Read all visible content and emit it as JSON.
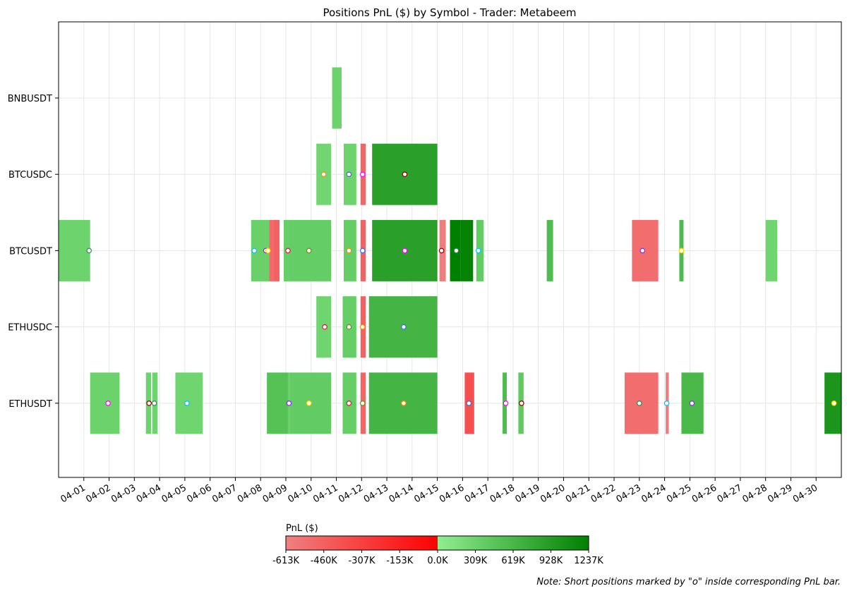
{
  "chart_data": {
    "type": "bar",
    "subtype": "timeline",
    "title": "Positions PnL ($) by Symbol - Trader: Metabeem",
    "categories": [
      "BNBUSDT",
      "BTCUSDC",
      "BTCUSDT",
      "ETHUSDC",
      "ETHUSDT"
    ],
    "x_ticks": [
      "04-01",
      "04-02",
      "04-03",
      "04-04",
      "04-05",
      "04-06",
      "04-07",
      "04-08",
      "04-09",
      "04-10",
      "04-11",
      "04-12",
      "04-13",
      "04-14",
      "04-15",
      "04-16",
      "04-17",
      "04-18",
      "04-19",
      "04-20",
      "04-21",
      "04-22",
      "04-23",
      "04-24",
      "04-25",
      "04-26",
      "04-27",
      "04-28",
      "04-29",
      "04-30"
    ],
    "xlim": [
      "2025-03-31 00:00",
      "2025-05-01 00:00"
    ],
    "grid": true,
    "positions": [
      {
        "symbol": "BNBUSDT",
        "start": "2025-04-10 20:00",
        "end": "2025-04-11 05:00",
        "pnl": 310000
      },
      {
        "symbol": "BTCUSDC",
        "start": "2025-04-10 05:00",
        "end": "2025-04-10 19:00",
        "pnl": 270000,
        "short_at": "2025-04-10 12:00"
      },
      {
        "symbol": "BTCUSDC",
        "start": "2025-04-11 07:00",
        "end": "2025-04-11 19:00",
        "pnl": 300000,
        "short_at": "2025-04-11 12:00"
      },
      {
        "symbol": "BTCUSDC",
        "start": "2025-04-11 23:00",
        "end": "2025-04-12 04:00",
        "pnl": -480000,
        "short_at": "2025-04-12 01:00"
      },
      {
        "symbol": "BTCUSDC",
        "start": "2025-04-12 10:00",
        "end": "2025-04-15 00:00",
        "pnl": 880000,
        "short_at": "2025-04-13 17:00"
      },
      {
        "symbol": "BTCUSDT",
        "start": "2025-03-31 00:00",
        "end": "2025-04-01 06:00",
        "pnl": 300000,
        "short_at": "2025-04-01 05:00"
      },
      {
        "symbol": "BTCUSDT",
        "start": "2025-04-07 15:00",
        "end": "2025-04-08 08:00",
        "pnl": 330000,
        "short_at": "2025-04-07 18:00"
      },
      {
        "symbol": "BTCUSDT",
        "start": "2025-04-08 08:00",
        "end": "2025-04-08 12:00",
        "pnl": -500000,
        "short_at": "2025-04-08 05:00"
      },
      {
        "symbol": "BTCUSDT",
        "start": "2025-04-08 12:00",
        "end": "2025-04-08 18:00",
        "pnl": -470000,
        "short_at": "2025-04-08 07:00"
      },
      {
        "symbol": "BTCUSDT",
        "start": "2025-04-08 22:00",
        "end": "2025-04-09 03:00",
        "pnl": 350000,
        "short_at": "2025-04-09 02:00"
      },
      {
        "symbol": "BTCUSDT",
        "start": "2025-04-09 03:00",
        "end": "2025-04-10 19:00",
        "pnl": 370000,
        "short_at": "2025-04-09 22:00"
      },
      {
        "symbol": "BTCUSDT",
        "start": "2025-04-11 07:00",
        "end": "2025-04-11 19:00",
        "pnl": 370000,
        "short_at": "2025-04-11 12:00"
      },
      {
        "symbol": "BTCUSDT",
        "start": "2025-04-11 23:00",
        "end": "2025-04-12 04:00",
        "pnl": -470000,
        "short_at": "2025-04-12 01:00"
      },
      {
        "symbol": "BTCUSDT",
        "start": "2025-04-12 10:00",
        "end": "2025-04-15 00:00",
        "pnl": 880000,
        "short_at": "2025-04-13 17:00"
      },
      {
        "symbol": "BTCUSDT",
        "start": "2025-04-15 02:00",
        "end": "2025-04-15 08:00",
        "pnl": -600000,
        "short_at": "2025-04-15 04:00"
      },
      {
        "symbol": "BTCUSDT",
        "start": "2025-04-15 12:00",
        "end": "2025-04-15 22:00",
        "pnl": 1237000
      },
      {
        "symbol": "BTCUSDT",
        "start": "2025-04-15 22:00",
        "end": "2025-04-16 10:00",
        "pnl": 1200000,
        "short_at": "2025-04-15 18:00"
      },
      {
        "symbol": "BTCUSDT",
        "start": "2025-04-16 13:00",
        "end": "2025-04-16 20:00",
        "pnl": 380000,
        "short_at": "2025-04-16 15:00"
      },
      {
        "symbol": "BTCUSDT",
        "start": "2025-04-19 08:00",
        "end": "2025-04-19 14:00",
        "pnl": 560000
      },
      {
        "symbol": "BTCUSDT",
        "start": "2025-04-22 17:00",
        "end": "2025-04-23 18:00",
        "pnl": -520000,
        "short_at": "2025-04-23 03:00"
      },
      {
        "symbol": "BTCUSDT",
        "start": "2025-04-24 14:00",
        "end": "2025-04-24 18:00",
        "pnl": 580000,
        "short_at": "2025-04-24 16:00"
      },
      {
        "symbol": "BTCUSDT",
        "start": "2025-04-28 00:00",
        "end": "2025-04-28 11:00",
        "pnl": 280000
      },
      {
        "symbol": "ETHUSDC",
        "start": "2025-04-10 05:00",
        "end": "2025-04-10 19:00",
        "pnl": 280000,
        "short_at": "2025-04-10 13:00"
      },
      {
        "symbol": "ETHUSDC",
        "start": "2025-04-11 06:00",
        "end": "2025-04-11 19:00",
        "pnl": 360000,
        "short_at": "2025-04-11 12:00"
      },
      {
        "symbol": "ETHUSDC",
        "start": "2025-04-11 23:00",
        "end": "2025-04-12 04:00",
        "pnl": -470000,
        "short_at": "2025-04-12 01:00"
      },
      {
        "symbol": "ETHUSDC",
        "start": "2025-04-12 07:00",
        "end": "2025-04-15 00:00",
        "pnl": 650000,
        "short_at": "2025-04-13 16:00"
      },
      {
        "symbol": "ETHUSDT",
        "start": "2025-04-01 06:00",
        "end": "2025-04-02 10:00",
        "pnl": 310000,
        "short_at": "2025-04-01 23:00"
      },
      {
        "symbol": "ETHUSDT",
        "start": "2025-04-03 11:00",
        "end": "2025-04-03 16:00",
        "pnl": 300000,
        "short_at": "2025-04-03 14:00"
      },
      {
        "symbol": "ETHUSDT",
        "start": "2025-04-03 17:00",
        "end": "2025-04-03 22:00",
        "pnl": 290000,
        "short_at": "2025-04-03 19:00"
      },
      {
        "symbol": "ETHUSDT",
        "start": "2025-04-04 15:00",
        "end": "2025-04-05 17:00",
        "pnl": 280000,
        "short_at": "2025-04-05 02:00"
      },
      {
        "symbol": "ETHUSDT",
        "start": "2025-04-08 06:00",
        "end": "2025-04-09 02:00",
        "pnl": 500000,
        "short_at": "2025-04-09 03:00"
      },
      {
        "symbol": "ETHUSDT",
        "start": "2025-04-09 02:00",
        "end": "2025-04-09 04:00",
        "pnl": 340000
      },
      {
        "symbol": "ETHUSDT",
        "start": "2025-04-09 04:00",
        "end": "2025-04-10 19:00",
        "pnl": 390000,
        "short_at": "2025-04-09 22:00"
      },
      {
        "symbol": "ETHUSDT",
        "start": "2025-04-11 06:00",
        "end": "2025-04-11 19:00",
        "pnl": 360000,
        "short_at": "2025-04-11 12:00"
      },
      {
        "symbol": "ETHUSDT",
        "start": "2025-04-11 23:00",
        "end": "2025-04-12 04:00",
        "pnl": -480000,
        "short_at": "2025-04-12 01:00"
      },
      {
        "symbol": "ETHUSDT",
        "start": "2025-04-12 07:00",
        "end": "2025-04-15 00:00",
        "pnl": 650000,
        "short_at": "2025-04-13 16:00"
      },
      {
        "symbol": "ETHUSDT",
        "start": "2025-04-16 02:00",
        "end": "2025-04-16 11:00",
        "pnl": -380000,
        "short_at": "2025-04-16 06:00"
      },
      {
        "symbol": "ETHUSDT",
        "start": "2025-04-17 14:00",
        "end": "2025-04-17 18:00",
        "pnl": 560000,
        "short_at": "2025-04-17 17:00"
      },
      {
        "symbol": "ETHUSDT",
        "start": "2025-04-18 05:00",
        "end": "2025-04-18 10:00",
        "pnl": 410000,
        "short_at": "2025-04-18 08:00"
      },
      {
        "symbol": "ETHUSDT",
        "start": "2025-04-22 10:00",
        "end": "2025-04-23 18:00",
        "pnl": -520000,
        "short_at": "2025-04-23 00:00"
      },
      {
        "symbol": "ETHUSDT",
        "start": "2025-04-24 01:00",
        "end": "2025-04-24 04:00",
        "pnl": -600000,
        "short_at": "2025-04-24 02:00"
      },
      {
        "symbol": "ETHUSDT",
        "start": "2025-04-24 16:00",
        "end": "2025-04-25 13:00",
        "pnl": 600000,
        "short_at": "2025-04-25 02:00"
      },
      {
        "symbol": "ETHUSDT",
        "start": "2025-04-30 08:00",
        "end": "2025-05-01 00:00",
        "pnl": 1000000,
        "short_at": "2025-04-30 17:00"
      }
    ],
    "colorbar": {
      "label": "PnL ($)",
      "min": -613000,
      "max": 1237000,
      "ticks": [
        "-613K",
        "-460K",
        "-307K",
        "-153K",
        "0.0K",
        "309K",
        "619K",
        "928K",
        "1237K"
      ],
      "colors": {
        "neg_low": "#f08080",
        "neg_high": "#ff0000",
        "pos_low": "#90ee90",
        "pos_high": "#008000"
      }
    },
    "annotations": [
      "Note: Short positions marked by \"o\" inside corresponding PnL bar."
    ]
  }
}
